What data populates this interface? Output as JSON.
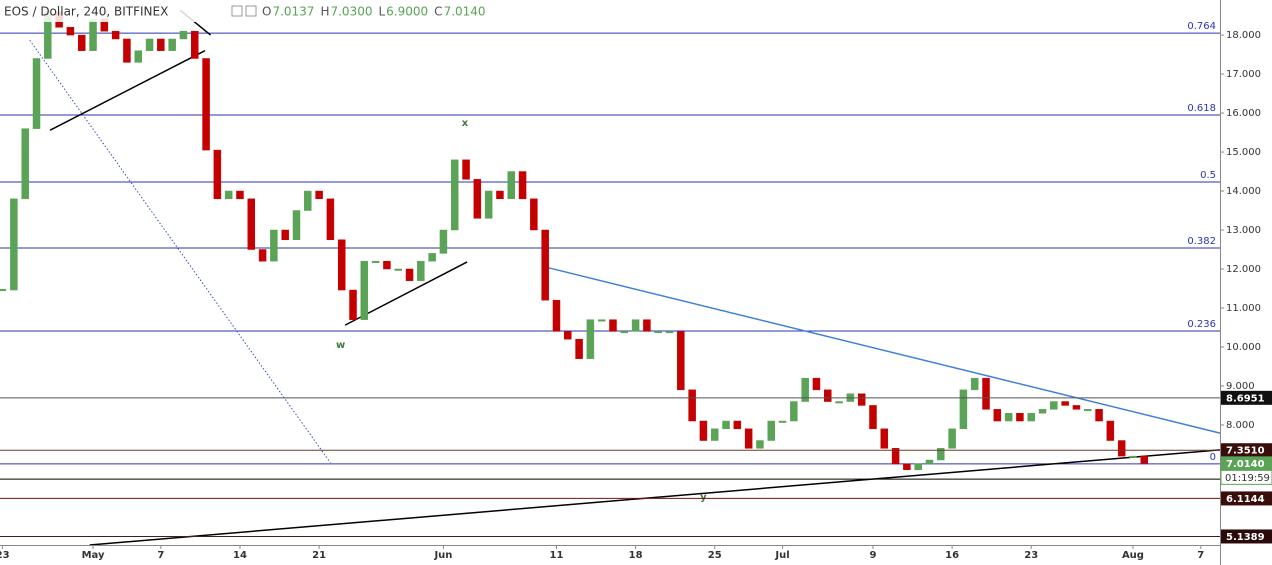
{
  "chart_data": {
    "type": "candlestick",
    "title": "EOS / Dollar, 240, BITFINEX",
    "ohlc": [
      {
        "label": "O",
        "value": "7.0137"
      },
      {
        "label": "H",
        "value": "7.0300"
      },
      {
        "label": "L",
        "value": "6.9000"
      },
      {
        "label": "C",
        "value": "7.0140"
      }
    ],
    "x": [
      0,
      1,
      2,
      3,
      4,
      5,
      6,
      7,
      8,
      9,
      10,
      11,
      12,
      13,
      14,
      15,
      16,
      17,
      18,
      19,
      20,
      21,
      22,
      23,
      24,
      25,
      26,
      27,
      28,
      29,
      30,
      31,
      32,
      33,
      34,
      35,
      36,
      37,
      38,
      39,
      40,
      41,
      42,
      43,
      44,
      45,
      46,
      47,
      48,
      49,
      50,
      51,
      52,
      53,
      54,
      55,
      56,
      57,
      58,
      59,
      60,
      61,
      62,
      63,
      64,
      65,
      66,
      67,
      68,
      69,
      70,
      71,
      72,
      73,
      74,
      75,
      76,
      77,
      78,
      79,
      80,
      81,
      82,
      83,
      84,
      85,
      86,
      87,
      88,
      89,
      90,
      91,
      92,
      93,
      94,
      95,
      96,
      97,
      98,
      99,
      100,
      101
    ],
    "close": [
      11.46,
      13.8,
      15.6,
      17.4,
      18.6,
      18.2,
      18.0,
      17.6,
      18.4,
      18.1,
      17.9,
      17.3,
      17.6,
      17.9,
      17.6,
      17.9,
      18.1,
      17.4,
      15.05,
      13.8,
      14.0,
      13.8,
      12.5,
      12.2,
      13.0,
      12.75,
      13.5,
      14.0,
      13.8,
      12.75,
      11.46,
      10.7,
      12.2,
      12.2,
      12.0,
      12.0,
      11.7,
      12.2,
      12.4,
      13.0,
      14.8,
      14.3,
      13.3,
      14.0,
      13.8,
      14.5,
      13.8,
      13.0,
      11.2,
      10.4,
      10.2,
      9.7,
      10.7,
      10.7,
      10.4,
      10.4,
      10.7,
      10.4,
      10.4,
      10.4,
      8.9,
      8.1,
      7.6,
      7.9,
      8.1,
      7.9,
      7.4,
      7.6,
      8.1,
      8.1,
      8.6,
      9.2,
      8.9,
      8.6,
      8.6,
      8.8,
      8.5,
      7.9,
      7.4,
      7.0,
      6.85,
      7.0,
      7.1,
      7.4,
      7.9,
      8.9,
      9.2,
      8.4,
      8.1,
      8.3,
      8.1,
      8.3,
      8.4,
      8.6,
      8.5,
      8.4,
      8.4,
      8.1,
      7.6,
      7.2,
      7.2,
      7.014
    ],
    "up_color": "#5aa357",
    "down_color": "#c40000",
    "xlim": [
      -0.23,
      107.7
    ],
    "xticks": [
      {
        "value": 0,
        "label": "23"
      },
      {
        "value": 8,
        "label": "May"
      },
      {
        "value": 14,
        "label": "7"
      },
      {
        "value": 21,
        "label": "14"
      },
      {
        "value": 28,
        "label": "21"
      },
      {
        "value": 39,
        "label": "Jun"
      },
      {
        "value": 49,
        "label": "11"
      },
      {
        "value": 56,
        "label": "18"
      },
      {
        "value": 63,
        "label": "25"
      },
      {
        "value": 69,
        "label": "Jul"
      },
      {
        "value": 77,
        "label": "9"
      },
      {
        "value": 84,
        "label": "16"
      },
      {
        "value": 91,
        "label": "23"
      },
      {
        "value": 100,
        "label": "Aug"
      },
      {
        "value": 106,
        "label": "7"
      }
    ],
    "ylim": [
      4.92,
      18.9
    ],
    "yticks": [
      {
        "value": 18,
        "label": "18.000"
      },
      {
        "value": 17,
        "label": "17.000"
      },
      {
        "value": 16,
        "label": "16.000"
      },
      {
        "value": 15,
        "label": "15.000"
      },
      {
        "value": 14,
        "label": "14.000"
      },
      {
        "value": 13,
        "label": "13.000"
      },
      {
        "value": 12,
        "label": "12.000"
      },
      {
        "value": 11,
        "label": "11.000"
      },
      {
        "value": 10,
        "label": "10.000"
      },
      {
        "value": 9,
        "label": "9.000"
      },
      {
        "value": 8,
        "label": "8.000"
      }
    ],
    "fib_color": "#2a36b1",
    "fib_levels": [
      {
        "label": "0.764",
        "price": 18.05
      },
      {
        "label": "0.618",
        "price": 15.95
      },
      {
        "label": "0.5",
        "price": 14.23
      },
      {
        "label": "0.382",
        "price": 12.54
      },
      {
        "label": "0.236",
        "price": 10.41
      },
      {
        "label": "0",
        "price": 7.0
      }
    ],
    "price_tags": [
      {
        "value": 8.6951,
        "label": "8.6951",
        "color": "#111111",
        "line_color": "#555555"
      },
      {
        "value": 7.351,
        "label": "7.3510",
        "color": "#3a0d0d",
        "line_color": "#6b3a2a"
      },
      {
        "value": 7.014,
        "label": "7.0140",
        "color": "#5aa357"
      },
      {
        "value": 6.1144,
        "label": "6.1144",
        "color": "#3a0d0d",
        "line_color": "#7a1010"
      },
      {
        "value": 5.1389,
        "label": "5.1389",
        "color": "#2a0a0a",
        "line_color": "#4a1a1a"
      }
    ],
    "countdown": "01:19:59",
    "levels": [
      {
        "value": 6.61,
        "color": "#000000"
      }
    ],
    "trend_lines": [
      {
        "color": "#3f7fd6",
        "x": [
          48.3,
          107.7
        ],
        "y": [
          12.03,
          7.79
        ]
      },
      {
        "color": "#000000",
        "x": [
          7.7,
          107.7
        ],
        "y": [
          4.92,
          7.36
        ]
      },
      {
        "color": "#3b4cc0",
        "dotted": true,
        "x": [
          2.4,
          29
        ],
        "y": [
          17.87,
          7.03
        ]
      },
      {
        "color": "#000000",
        "x": [
          4.2,
          17.9
        ],
        "y": [
          15.56,
          17.6
        ]
      },
      {
        "color": "#000000",
        "x": [
          30.3,
          41.1
        ],
        "y": [
          10.56,
          12.18
        ]
      },
      {
        "color": "#000000",
        "x": [
          15.7,
          18.4
        ],
        "y": [
          18.64,
          18.0
        ]
      }
    ],
    "annotation_color": "#3d7a3d",
    "annotations": [
      {
        "text": "x",
        "x": 40.9,
        "y": 15.74
      },
      {
        "text": "w",
        "x": 29.9,
        "y": 10.05
      },
      {
        "text": "y",
        "x": 62,
        "y": 6.15
      }
    ]
  }
}
